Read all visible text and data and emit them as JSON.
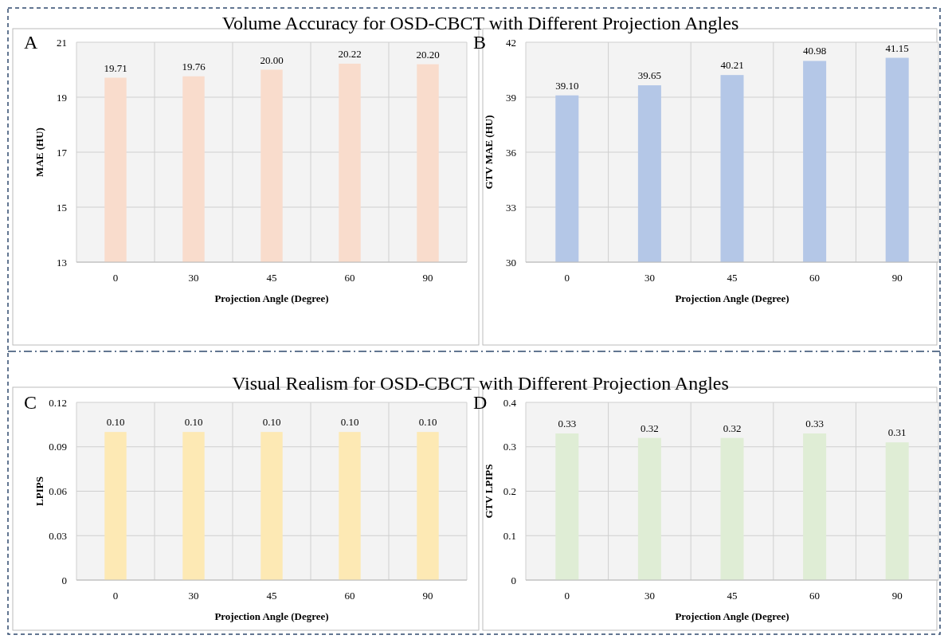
{
  "chart_data": [
    {
      "type": "bar",
      "title": "Volume Accuracy for OSD-CBCT with Different Projection Angles",
      "annotations": [
        "A"
      ],
      "xlabel": "Projection Angle (Degree)",
      "ylabel": "MAE (HU)",
      "categories": [
        "0",
        "30",
        "45",
        "60",
        "90"
      ],
      "values": [
        19.71,
        19.76,
        20.0,
        20.22,
        20.2
      ],
      "value_labels": [
        "19.71",
        "19.76",
        "20.00",
        "20.22",
        "20.20"
      ],
      "color": "#f9dccc",
      "ylim": [
        13,
        21
      ],
      "yticks": [
        13,
        15,
        17,
        19,
        21
      ],
      "grid": true
    },
    {
      "type": "bar",
      "annotations": [
        "B"
      ],
      "xlabel": "Projection Angle (Degree)",
      "ylabel": "GTV MAE (HU)",
      "categories": [
        "0",
        "30",
        "45",
        "60",
        "90"
      ],
      "values": [
        39.1,
        39.65,
        40.21,
        40.98,
        41.15
      ],
      "value_labels": [
        "39.10",
        "39.65",
        "40.21",
        "40.98",
        "41.15"
      ],
      "color": "#b4c7e7",
      "ylim": [
        30,
        42
      ],
      "yticks": [
        30,
        33,
        36,
        39,
        42
      ],
      "grid": true
    },
    {
      "type": "bar",
      "title": "Visual Realism for OSD-CBCT with Different Projection Angles",
      "annotations": [
        "C"
      ],
      "xlabel": "Projection Angle (Degree)",
      "ylabel": "LPIPS",
      "categories": [
        "0",
        "30",
        "45",
        "60",
        "90"
      ],
      "values": [
        0.1,
        0.1,
        0.1,
        0.1,
        0.1
      ],
      "value_labels": [
        "0.10",
        "0.10",
        "0.10",
        "0.10",
        "0.10"
      ],
      "color": "#fde9b4",
      "ylim": [
        0,
        0.12
      ],
      "yticks": [
        0,
        0.03,
        0.06,
        0.09,
        0.12
      ],
      "grid": true
    },
    {
      "type": "bar",
      "annotations": [
        "D"
      ],
      "xlabel": "Projection Angle (Degree)",
      "ylabel": "GTV LPIPS",
      "categories": [
        "0",
        "30",
        "45",
        "60",
        "90"
      ],
      "values": [
        0.33,
        0.32,
        0.32,
        0.33,
        0.31
      ],
      "value_labels": [
        "0.33",
        "0.32",
        "0.32",
        "0.33",
        "0.31"
      ],
      "color": "#dfedd5",
      "ylim": [
        0,
        0.4
      ],
      "yticks": [
        0,
        0.1,
        0.2,
        0.3,
        0.4
      ],
      "grid": true
    }
  ]
}
